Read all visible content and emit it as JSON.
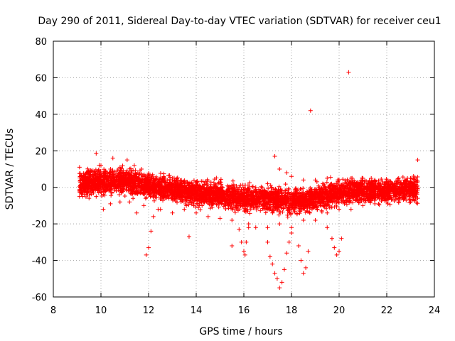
{
  "chart_data": {
    "type": "scatter",
    "title": "Day 290 of 2011, Sidereal Day-to-day VTEC variation (SDTVAR) for receiver ceu1",
    "xlabel": "GPS time / hours",
    "ylabel": "SDTVAR / TECUs",
    "xlim": [
      8,
      24
    ],
    "ylim": [
      -60,
      80
    ],
    "x_ticks": [
      8,
      10,
      12,
      14,
      16,
      18,
      20,
      22,
      24
    ],
    "y_ticks": [
      -60,
      -40,
      -20,
      0,
      20,
      40,
      60,
      80
    ],
    "x_tick_labels": [
      "8",
      "10",
      "12",
      "14",
      "16",
      "18",
      "20",
      "22",
      "24"
    ],
    "y_tick_labels": [
      "-60",
      "-40",
      "-20",
      "0",
      "20",
      "40",
      "60",
      "80"
    ],
    "grid": true,
    "marker": "+",
    "color": "#ff0000",
    "series": [
      {
        "name": "SDTVAR",
        "points": [
          [
            9.1,
            11
          ],
          [
            9.3,
            6
          ],
          [
            9.6,
            9
          ],
          [
            9.8,
            18.5
          ],
          [
            10.0,
            12
          ],
          [
            10.2,
            9
          ],
          [
            10.4,
            10
          ],
          [
            10.5,
            16
          ],
          [
            10.8,
            11
          ],
          [
            11.1,
            15
          ],
          [
            11.4,
            12
          ],
          [
            11.7,
            10
          ],
          [
            12.0,
            7
          ],
          [
            12.3,
            5
          ],
          [
            12.6,
            5
          ],
          [
            13.0,
            4
          ],
          [
            13.5,
            2
          ],
          [
            14.0,
            1
          ],
          [
            14.5,
            -1
          ],
          [
            15.0,
            3
          ],
          [
            15.5,
            1
          ],
          [
            16.0,
            0
          ],
          [
            16.5,
            0
          ],
          [
            17.0,
            2
          ],
          [
            17.3,
            17
          ],
          [
            17.5,
            10
          ],
          [
            17.8,
            8
          ],
          [
            18.0,
            6
          ],
          [
            18.5,
            4
          ],
          [
            19.0,
            4
          ],
          [
            19.5,
            5
          ],
          [
            20.0,
            4
          ],
          [
            20.5,
            5
          ],
          [
            21.0,
            5
          ],
          [
            21.5,
            4
          ],
          [
            22.0,
            4
          ],
          [
            22.5,
            5
          ],
          [
            23.0,
            5
          ],
          [
            23.3,
            15
          ],
          [
            9.1,
            -5
          ],
          [
            9.5,
            -6
          ],
          [
            9.8,
            -5
          ],
          [
            10.1,
            -12
          ],
          [
            10.4,
            -9
          ],
          [
            10.8,
            -8
          ],
          [
            11.2,
            -8
          ],
          [
            11.5,
            -14
          ],
          [
            11.8,
            -10
          ],
          [
            12.5,
            -12
          ],
          [
            13.0,
            -14
          ],
          [
            13.5,
            -12
          ],
          [
            13.7,
            -27
          ],
          [
            14.0,
            -14
          ],
          [
            14.5,
            -16
          ],
          [
            15.0,
            -17
          ],
          [
            15.5,
            -18
          ],
          [
            16.2,
            -20
          ],
          [
            16.5,
            -22
          ],
          [
            17.0,
            -22
          ],
          [
            17.5,
            -20
          ],
          [
            18.0,
            -22
          ],
          [
            18.5,
            -18
          ],
          [
            19.0,
            -18
          ],
          [
            19.5,
            -14
          ],
          [
            20.0,
            -12
          ],
          [
            20.5,
            -12
          ],
          [
            21.0,
            -10
          ],
          [
            21.5,
            -9
          ],
          [
            22.0,
            -8
          ],
          [
            22.5,
            -8
          ],
          [
            23.0,
            -8
          ],
          [
            23.2,
            -5
          ],
          [
            23.3,
            -6
          ],
          [
            11.9,
            -37
          ],
          [
            12.0,
            -33
          ],
          [
            12.1,
            -24
          ],
          [
            12.2,
            -16
          ],
          [
            12.4,
            -12
          ],
          [
            15.8,
            -23
          ],
          [
            15.9,
            -30
          ],
          [
            16.0,
            -35
          ],
          [
            16.05,
            -37
          ],
          [
            16.1,
            -30
          ],
          [
            16.2,
            -22
          ],
          [
            15.5,
            -32
          ],
          [
            17.0,
            -30
          ],
          [
            17.1,
            -38
          ],
          [
            17.2,
            -42
          ],
          [
            17.3,
            -47
          ],
          [
            17.4,
            -50
          ],
          [
            17.5,
            -55
          ],
          [
            17.6,
            -52
          ],
          [
            17.7,
            -45
          ],
          [
            17.8,
            -36
          ],
          [
            17.9,
            -30
          ],
          [
            18.0,
            -25
          ],
          [
            18.3,
            -32
          ],
          [
            18.4,
            -40
          ],
          [
            18.5,
            -47
          ],
          [
            18.6,
            -44
          ],
          [
            18.7,
            -35
          ],
          [
            19.5,
            -22
          ],
          [
            19.7,
            -28
          ],
          [
            19.8,
            -33
          ],
          [
            19.9,
            -37
          ],
          [
            20.0,
            -35
          ],
          [
            20.1,
            -28
          ],
          [
            20.4,
            63
          ],
          [
            18.8,
            42
          ]
        ]
      }
    ]
  }
}
